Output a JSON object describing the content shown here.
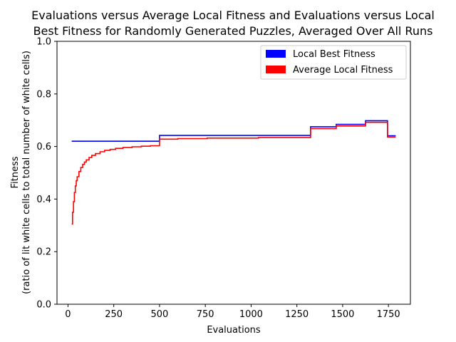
{
  "chart_data": {
    "type": "line",
    "title_line1": "Evaluations versus Average Local Fitness and Evaluations versus Local",
    "title_line2": "Best Fitness for Randomly Generated Puzzles, Averaged Over All Runs",
    "xlabel": "Evaluations",
    "ylabel_line1": "Fitness",
    "ylabel_line2": "(ratio of lit white cells to total number of white cells)",
    "xlim": [
      -60,
      1870
    ],
    "ylim": [
      0.0,
      1.0
    ],
    "x_ticks": [
      0,
      250,
      500,
      750,
      1000,
      1250,
      1500,
      1750
    ],
    "y_ticks": [
      0.0,
      0.2,
      0.4,
      0.6,
      0.8,
      1.0
    ],
    "x_tick_labels": [
      "0",
      "250",
      "500",
      "750",
      "1000",
      "1250",
      "1500",
      "1750"
    ],
    "y_tick_labels": [
      "0.0",
      "0.2",
      "0.4",
      "0.6",
      "0.8",
      "1.0"
    ],
    "legend_position": "top-right",
    "series": [
      {
        "name": "Local Best Fitness",
        "color": "#0000ff",
        "step": true,
        "x": [
          20,
          500,
          1325,
          1465,
          1625,
          1745,
          1790
        ],
        "y": [
          0.62,
          0.642,
          0.675,
          0.684,
          0.698,
          0.641,
          0.641
        ]
      },
      {
        "name": "Average Local Fitness",
        "color": "#ff0000",
        "step": true,
        "x": [
          20,
          25,
          30,
          35,
          40,
          45,
          50,
          60,
          70,
          80,
          90,
          100,
          115,
          130,
          150,
          175,
          200,
          230,
          260,
          300,
          350,
          400,
          450,
          500,
          600,
          760,
          1040,
          1325,
          1465,
          1625,
          1745,
          1790
        ],
        "y": [
          0.305,
          0.35,
          0.39,
          0.425,
          0.45,
          0.47,
          0.485,
          0.505,
          0.52,
          0.532,
          0.541,
          0.549,
          0.558,
          0.566,
          0.573,
          0.58,
          0.585,
          0.589,
          0.593,
          0.596,
          0.599,
          0.601,
          0.603,
          0.628,
          0.63,
          0.632,
          0.634,
          0.668,
          0.678,
          0.692,
          0.636,
          0.636
        ]
      }
    ]
  }
}
